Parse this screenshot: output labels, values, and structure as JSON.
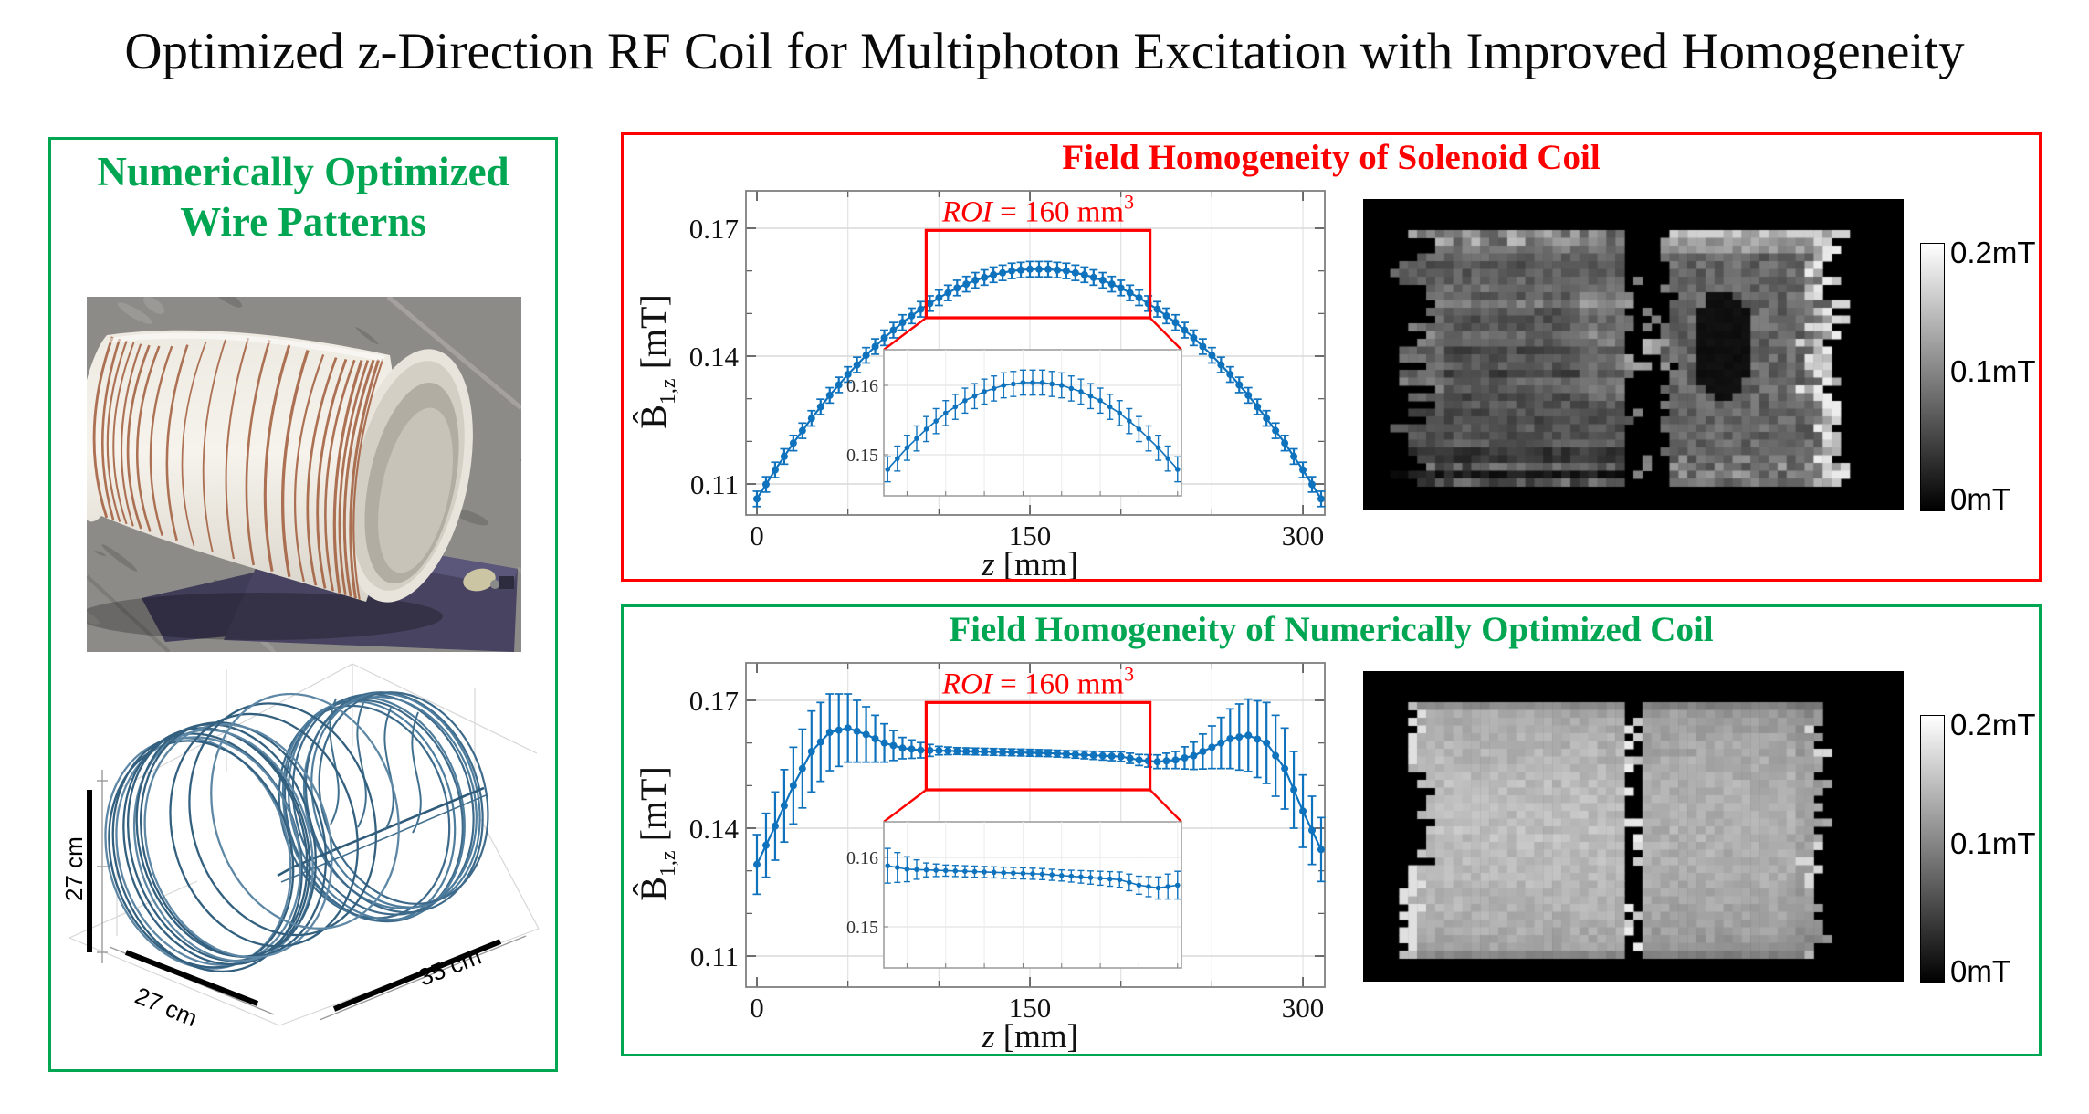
{
  "title": "Optimized z-Direction RF Coil for Multiphoton Excitation with Improved Homogeneity",
  "colors": {
    "green": "#00A651",
    "red": "#FF0000",
    "blue": "#0F72BD"
  },
  "left_panel": {
    "title_line1": "Numerically Optimized",
    "title_line2": "Wire Patterns",
    "photo": {
      "description": "3D-printed white cylindrical coil former with copper wire windings resting on a dark base plate on gray stone"
    },
    "wire_plot": {
      "height_label": "27 cm",
      "depth_label": "27 cm",
      "length_label": "35 cm"
    }
  },
  "solenoid_panel": {
    "title": "Field Homogeneity of Solenoid Coil",
    "colorbar": {
      "top": "0.2mT",
      "middle": "0.1mT",
      "bottom": "0mT"
    },
    "map_style": "solenoid"
  },
  "optimized_panel": {
    "title": "Field Homogeneity of Numerically Optimized Coil",
    "colorbar": {
      "top": "0.2mT",
      "middle": "0.1mT",
      "bottom": "0mT"
    },
    "map_style": "optimized"
  },
  "chart_data": [
    {
      "type": "line",
      "name": "solenoid_profile",
      "title": "Field Homogeneity of Solenoid Coil",
      "xlabel": "z [mm]",
      "ylabel": "B̂ 1,z [mT]",
      "xlabel_parts": {
        "var": "z",
        "unit": " [mm]"
      },
      "ylabel_parts": {
        "letter": "B̂",
        "sub": "1,z",
        "unit": " [mT]"
      },
      "x_ticks": [
        0,
        150,
        300
      ],
      "y_ticks": [
        0.11,
        0.14,
        0.17
      ],
      "x_minor_step": 50,
      "xlim": [
        -6,
        316
      ],
      "ylim": [
        0.103,
        0.179
      ],
      "grid": true,
      "roi": {
        "text_var": "ROI",
        "text_rest": " = 160 mm",
        "text_sup": "3",
        "z_start": 93,
        "z_end": 216,
        "b_top": 0.1695,
        "b_bottom": 0.149
      },
      "inset": {
        "y_ticks": [
          0.15,
          0.16
        ],
        "z_range": [
          78,
          232
        ],
        "b_range": [
          0.1441,
          0.1651
        ],
        "z_grid_step": 20
      },
      "x": [
        0,
        10,
        20,
        30,
        40,
        50,
        60,
        70,
        80,
        90,
        100,
        110,
        120,
        130,
        140,
        150,
        160,
        170,
        180,
        190,
        200,
        210,
        220,
        230,
        240,
        250,
        260,
        270,
        280,
        290,
        300,
        310
      ],
      "y": [
        0.1065,
        0.1133,
        0.1196,
        0.1254,
        0.1308,
        0.1357,
        0.1402,
        0.1443,
        0.1479,
        0.151,
        0.1537,
        0.156,
        0.1578,
        0.1591,
        0.16,
        0.1604,
        0.1604,
        0.16,
        0.1591,
        0.1578,
        0.156,
        0.1537,
        0.151,
        0.1479,
        0.1443,
        0.1402,
        0.1357,
        0.1308,
        0.1254,
        0.1196,
        0.1133,
        0.1065
      ],
      "yerr": 0.0018
    },
    {
      "type": "line",
      "name": "optimized_profile",
      "title": "Field Homogeneity of Numerically Optimized Coil",
      "xlabel": "z [mm]",
      "ylabel": "B̂ 1,z [mT]",
      "xlabel_parts": {
        "var": "z",
        "unit": " [mm]"
      },
      "ylabel_parts": {
        "letter": "B̂",
        "sub": "1,z",
        "unit": " [mT]"
      },
      "x_ticks": [
        0,
        150,
        300
      ],
      "y_ticks": [
        0.11,
        0.14,
        0.17
      ],
      "x_minor_step": 50,
      "xlim": [
        -6,
        316
      ],
      "ylim": [
        0.103,
        0.179
      ],
      "grid": true,
      "roi": {
        "text_var": "ROI",
        "text_rest": " = 160 mm",
        "text_sup": "3",
        "z_start": 93,
        "z_end": 216,
        "b_top": 0.1695,
        "b_bottom": 0.149
      },
      "inset": {
        "y_ticks": [
          0.15,
          0.16
        ],
        "z_range": [
          78,
          232
        ],
        "b_range": [
          0.1441,
          0.1651
        ],
        "z_grid_step": 20
      },
      "x": [
        0,
        10,
        20,
        30,
        40,
        50,
        60,
        70,
        80,
        90,
        100,
        110,
        120,
        130,
        140,
        150,
        160,
        170,
        180,
        190,
        200,
        210,
        220,
        230,
        240,
        250,
        260,
        270,
        280,
        290,
        300,
        310
      ],
      "y": [
        0.1315,
        0.1405,
        0.15,
        0.158,
        0.1625,
        0.1635,
        0.162,
        0.16,
        0.1588,
        0.1583,
        0.1582,
        0.1581,
        0.158,
        0.1579,
        0.1578,
        0.1577,
        0.1576,
        0.1574,
        0.1572,
        0.157,
        0.1568,
        0.156,
        0.1556,
        0.156,
        0.157,
        0.159,
        0.161,
        0.1618,
        0.16,
        0.154,
        0.144,
        0.135
      ],
      "yerr": [
        0.007,
        0.008,
        0.009,
        0.0095,
        0.009,
        0.008,
        0.0065,
        0.0045,
        0.0025,
        0.0018,
        0.001,
        0.0008,
        0.0008,
        0.0008,
        0.0008,
        0.0008,
        0.0008,
        0.0008,
        0.0009,
        0.001,
        0.0011,
        0.0013,
        0.0016,
        0.002,
        0.0032,
        0.005,
        0.007,
        0.0085,
        0.0095,
        0.0095,
        0.0085,
        0.0075
      ]
    }
  ]
}
